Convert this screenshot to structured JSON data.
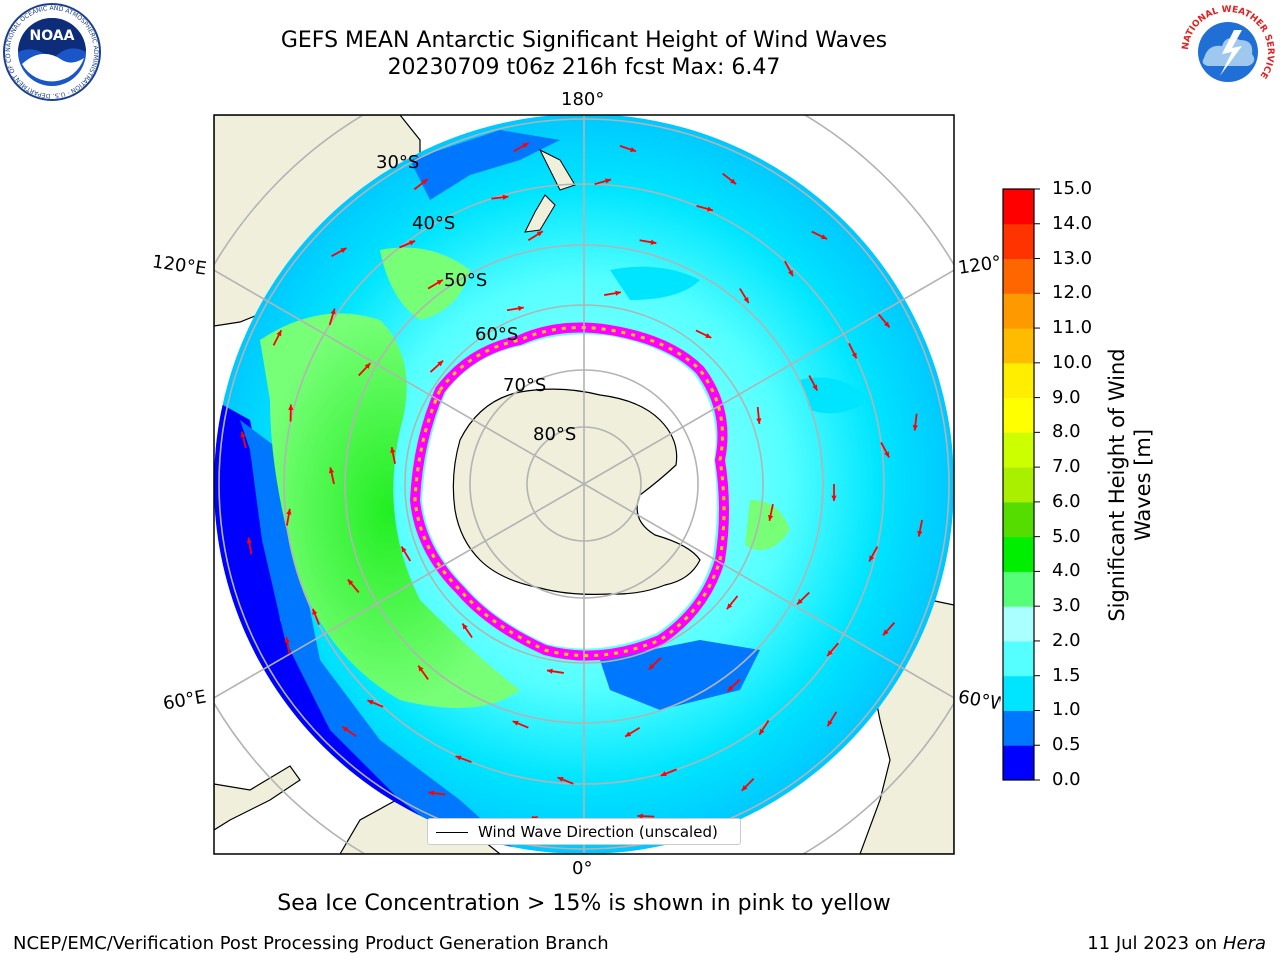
{
  "header": {
    "title_line1": "GEFS MEAN Antarctic Significant Height of Wind Waves",
    "title_line2": "20230709 t06z 216h fcst   Max: 6.47"
  },
  "logos": {
    "noaa_text": "NOAA",
    "noaa_ring_text": "NATIONAL OCEANIC AND ATMOSPHERIC ADMINISTRATION · U.S. DEPARTMENT OF COMMERCE",
    "nws_ring_text": "NATIONAL WEATHER SERVICE"
  },
  "map": {
    "longitude_labels": {
      "top": "180°",
      "bottom": "0°",
      "upper_left": "120°E",
      "lower_left": "60°E",
      "upper_right": "120°W",
      "lower_right": "60°W"
    },
    "latitude_labels": [
      "30°S",
      "40°S",
      "50°S",
      "60°S",
      "70°S",
      "80°S"
    ],
    "legend_label": "Wind Wave Direction (unscaled)",
    "colors": {
      "land": "#efefdc",
      "ice_interior": "#ffffff",
      "ice_edge": [
        "#ff00ff",
        "#ff88ff",
        "#ffd000"
      ],
      "arrow": "#ff0000"
    }
  },
  "colorbar": {
    "title": "Significant Height of Wind Waves [m]",
    "ticks": [
      "0.0",
      "0.5",
      "1.0",
      "1.5",
      "2.0",
      "3.0",
      "4.0",
      "5.0",
      "6.0",
      "7.0",
      "8.0",
      "9.0",
      "10.0",
      "11.0",
      "12.0",
      "13.0",
      "14.0",
      "15.0"
    ],
    "colors": [
      "#0000ff",
      "#0077ff",
      "#00e5ff",
      "#55ffff",
      "#aaffff",
      "#55ff77",
      "#00ee00",
      "#55dd00",
      "#aaee00",
      "#ccff00",
      "#ffff00",
      "#ffee00",
      "#ffbb00",
      "#ff9900",
      "#ff6600",
      "#ff3300",
      "#ff0000"
    ]
  },
  "note": "Sea Ice Concentration > 15% is shown in pink to yellow",
  "footer": {
    "left": "NCEP/EMC/Verification Post Processing Product Generation Branch",
    "right_date": "11 Jul 2023 on",
    "right_host": "Hera"
  }
}
